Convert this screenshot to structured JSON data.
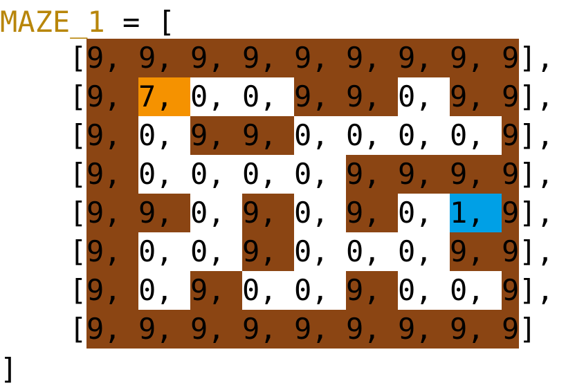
{
  "code": {
    "variable": "MAZE_1",
    "assign": " = [",
    "closing": "]"
  },
  "legend_colors": {
    "wall": "#8b4513",
    "open": "#ffffff",
    "start": "#f59200",
    "goal": "#00a0e6"
  },
  "maze": {
    "rows": [
      [
        9,
        9,
        9,
        9,
        9,
        9,
        9,
        9,
        9
      ],
      [
        9,
        7,
        0,
        0,
        9,
        9,
        0,
        9,
        9
      ],
      [
        9,
        0,
        9,
        9,
        0,
        0,
        0,
        0,
        9
      ],
      [
        9,
        0,
        0,
        0,
        0,
        9,
        9,
        9,
        9
      ],
      [
        9,
        9,
        0,
        9,
        0,
        9,
        0,
        1,
        9
      ],
      [
        9,
        0,
        0,
        9,
        0,
        0,
        0,
        9,
        9
      ],
      [
        9,
        0,
        9,
        0,
        0,
        9,
        0,
        0,
        9
      ],
      [
        9,
        9,
        9,
        9,
        9,
        9,
        9,
        9,
        9
      ]
    ],
    "row_suffix": "],",
    "last_row_suffix": "]"
  }
}
